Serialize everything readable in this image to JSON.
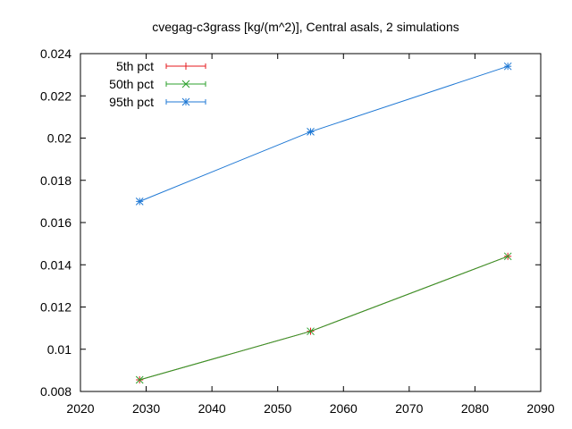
{
  "chart_data": {
    "type": "line",
    "title": "cvegag-c3grass [kg/(m^2)], Central asals, 2 simulations",
    "xlabel": "",
    "ylabel": "",
    "xlim": [
      2020,
      2090
    ],
    "ylim": [
      0.008,
      0.024
    ],
    "xticks": [
      2020,
      2030,
      2040,
      2050,
      2060,
      2070,
      2080,
      2090
    ],
    "yticks": [
      0.008,
      0.01,
      0.012,
      0.014,
      0.016,
      0.018,
      0.02,
      0.022,
      0.024
    ],
    "xtick_labels": [
      "2020",
      "2030",
      "2040",
      "2050",
      "2060",
      "2070",
      "2080",
      "2090"
    ],
    "ytick_labels": [
      "0.008",
      "0.01",
      "0.012",
      "0.014",
      "0.016",
      "0.018",
      "0.02",
      "0.022",
      "0.024"
    ],
    "x": [
      2029,
      2055,
      2085
    ],
    "series": [
      {
        "name": "5th pct",
        "values": [
          0.00855,
          0.01085,
          0.0144
        ],
        "color": "#e41a1c",
        "marker": "plus"
      },
      {
        "name": "50th pct",
        "values": [
          0.00855,
          0.01085,
          0.0144
        ],
        "color": "#2ca02c",
        "marker": "cross"
      },
      {
        "name": "95th pct",
        "values": [
          0.017,
          0.0203,
          0.0234
        ],
        "color": "#1f78d4",
        "marker": "star"
      }
    ],
    "grid": false,
    "legend_position": "top-left"
  }
}
